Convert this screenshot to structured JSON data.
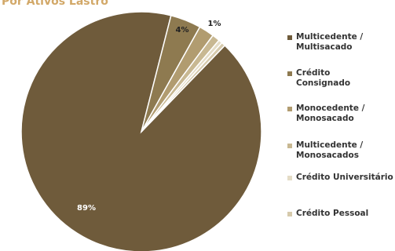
{
  "chart_data": {
    "type": "pie",
    "title": "Por Ativos Lastro",
    "categories": [
      "Multicedente / Multisacado",
      "Crédito Consignado",
      "Monocedente / Monosacado",
      "Multicedente / Monosacados",
      "Crédito Universitário",
      "Crédito Pessoal"
    ],
    "values": [
      89,
      4,
      2,
      1,
      0.5,
      0.5
    ],
    "value_labels": [
      "89%",
      "4%",
      null,
      "1%",
      null,
      null
    ],
    "colors": [
      "#6f5b3b",
      "#8e7a50",
      "#b19c70",
      "#c8b892",
      "#e4dcc6",
      "#d6caac"
    ]
  }
}
